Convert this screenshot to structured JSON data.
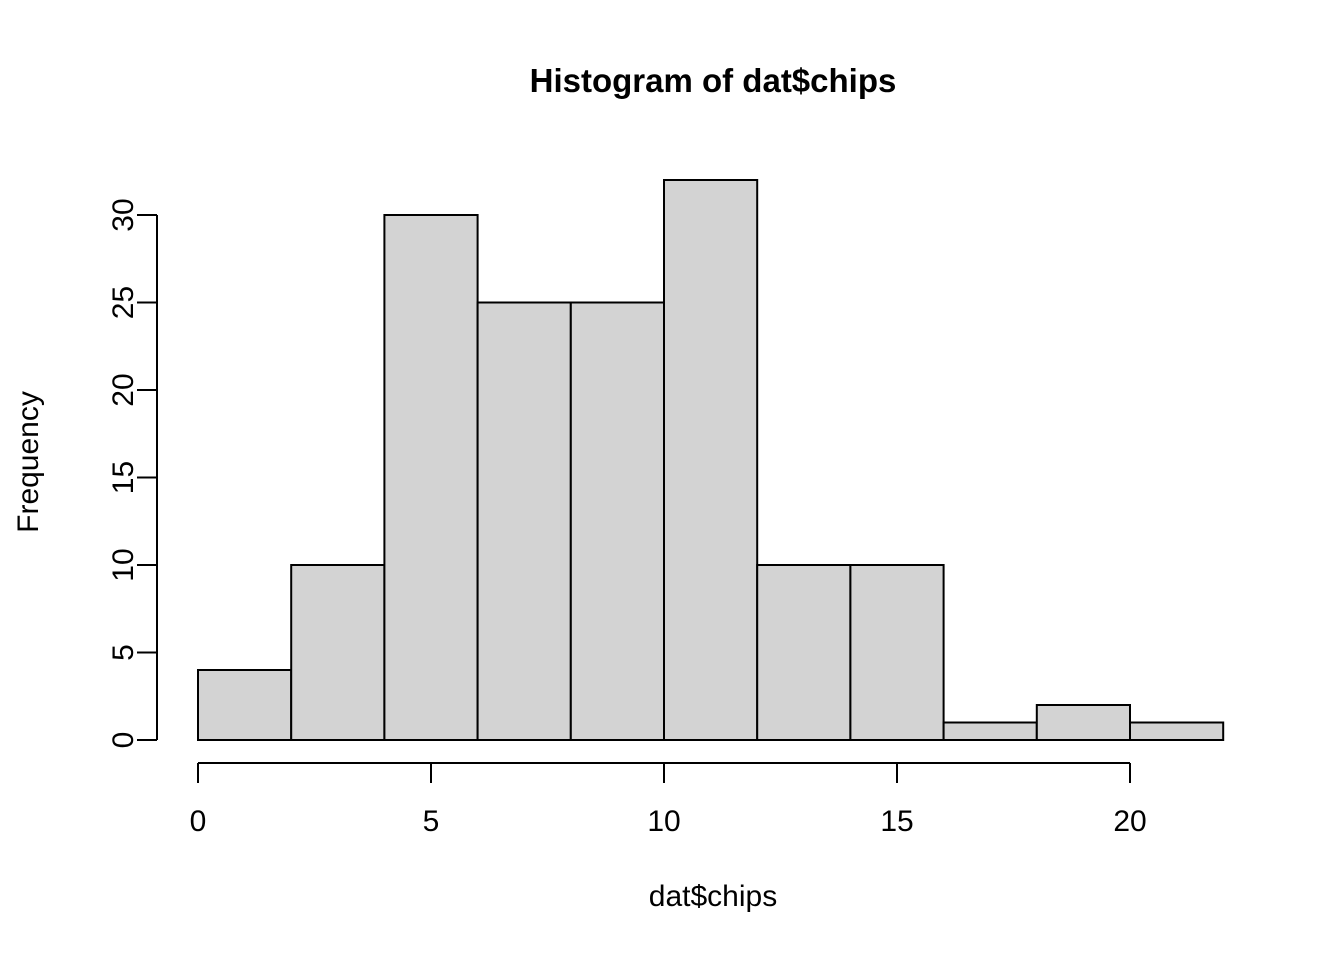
{
  "chart_data": {
    "type": "bar",
    "subtype": "histogram",
    "title": "Histogram of dat$chips",
    "xlabel": "dat$chips",
    "ylabel": "Frequency",
    "bin_edges": [
      0,
      2,
      4,
      6,
      8,
      10,
      12,
      14,
      16,
      18,
      20,
      22
    ],
    "values": [
      4,
      10,
      30,
      25,
      25,
      32,
      10,
      10,
      1,
      2,
      1
    ],
    "x_ticks": [
      0,
      5,
      10,
      15,
      20
    ],
    "y_ticks": [
      0,
      5,
      10,
      15,
      20,
      25,
      30
    ],
    "xlim": [
      0,
      22
    ],
    "ylim": [
      0,
      32
    ],
    "bar_fill": "#d3d3d3",
    "bar_stroke": "#000000",
    "background": "#ffffff",
    "grid": false,
    "legend": "none"
  }
}
